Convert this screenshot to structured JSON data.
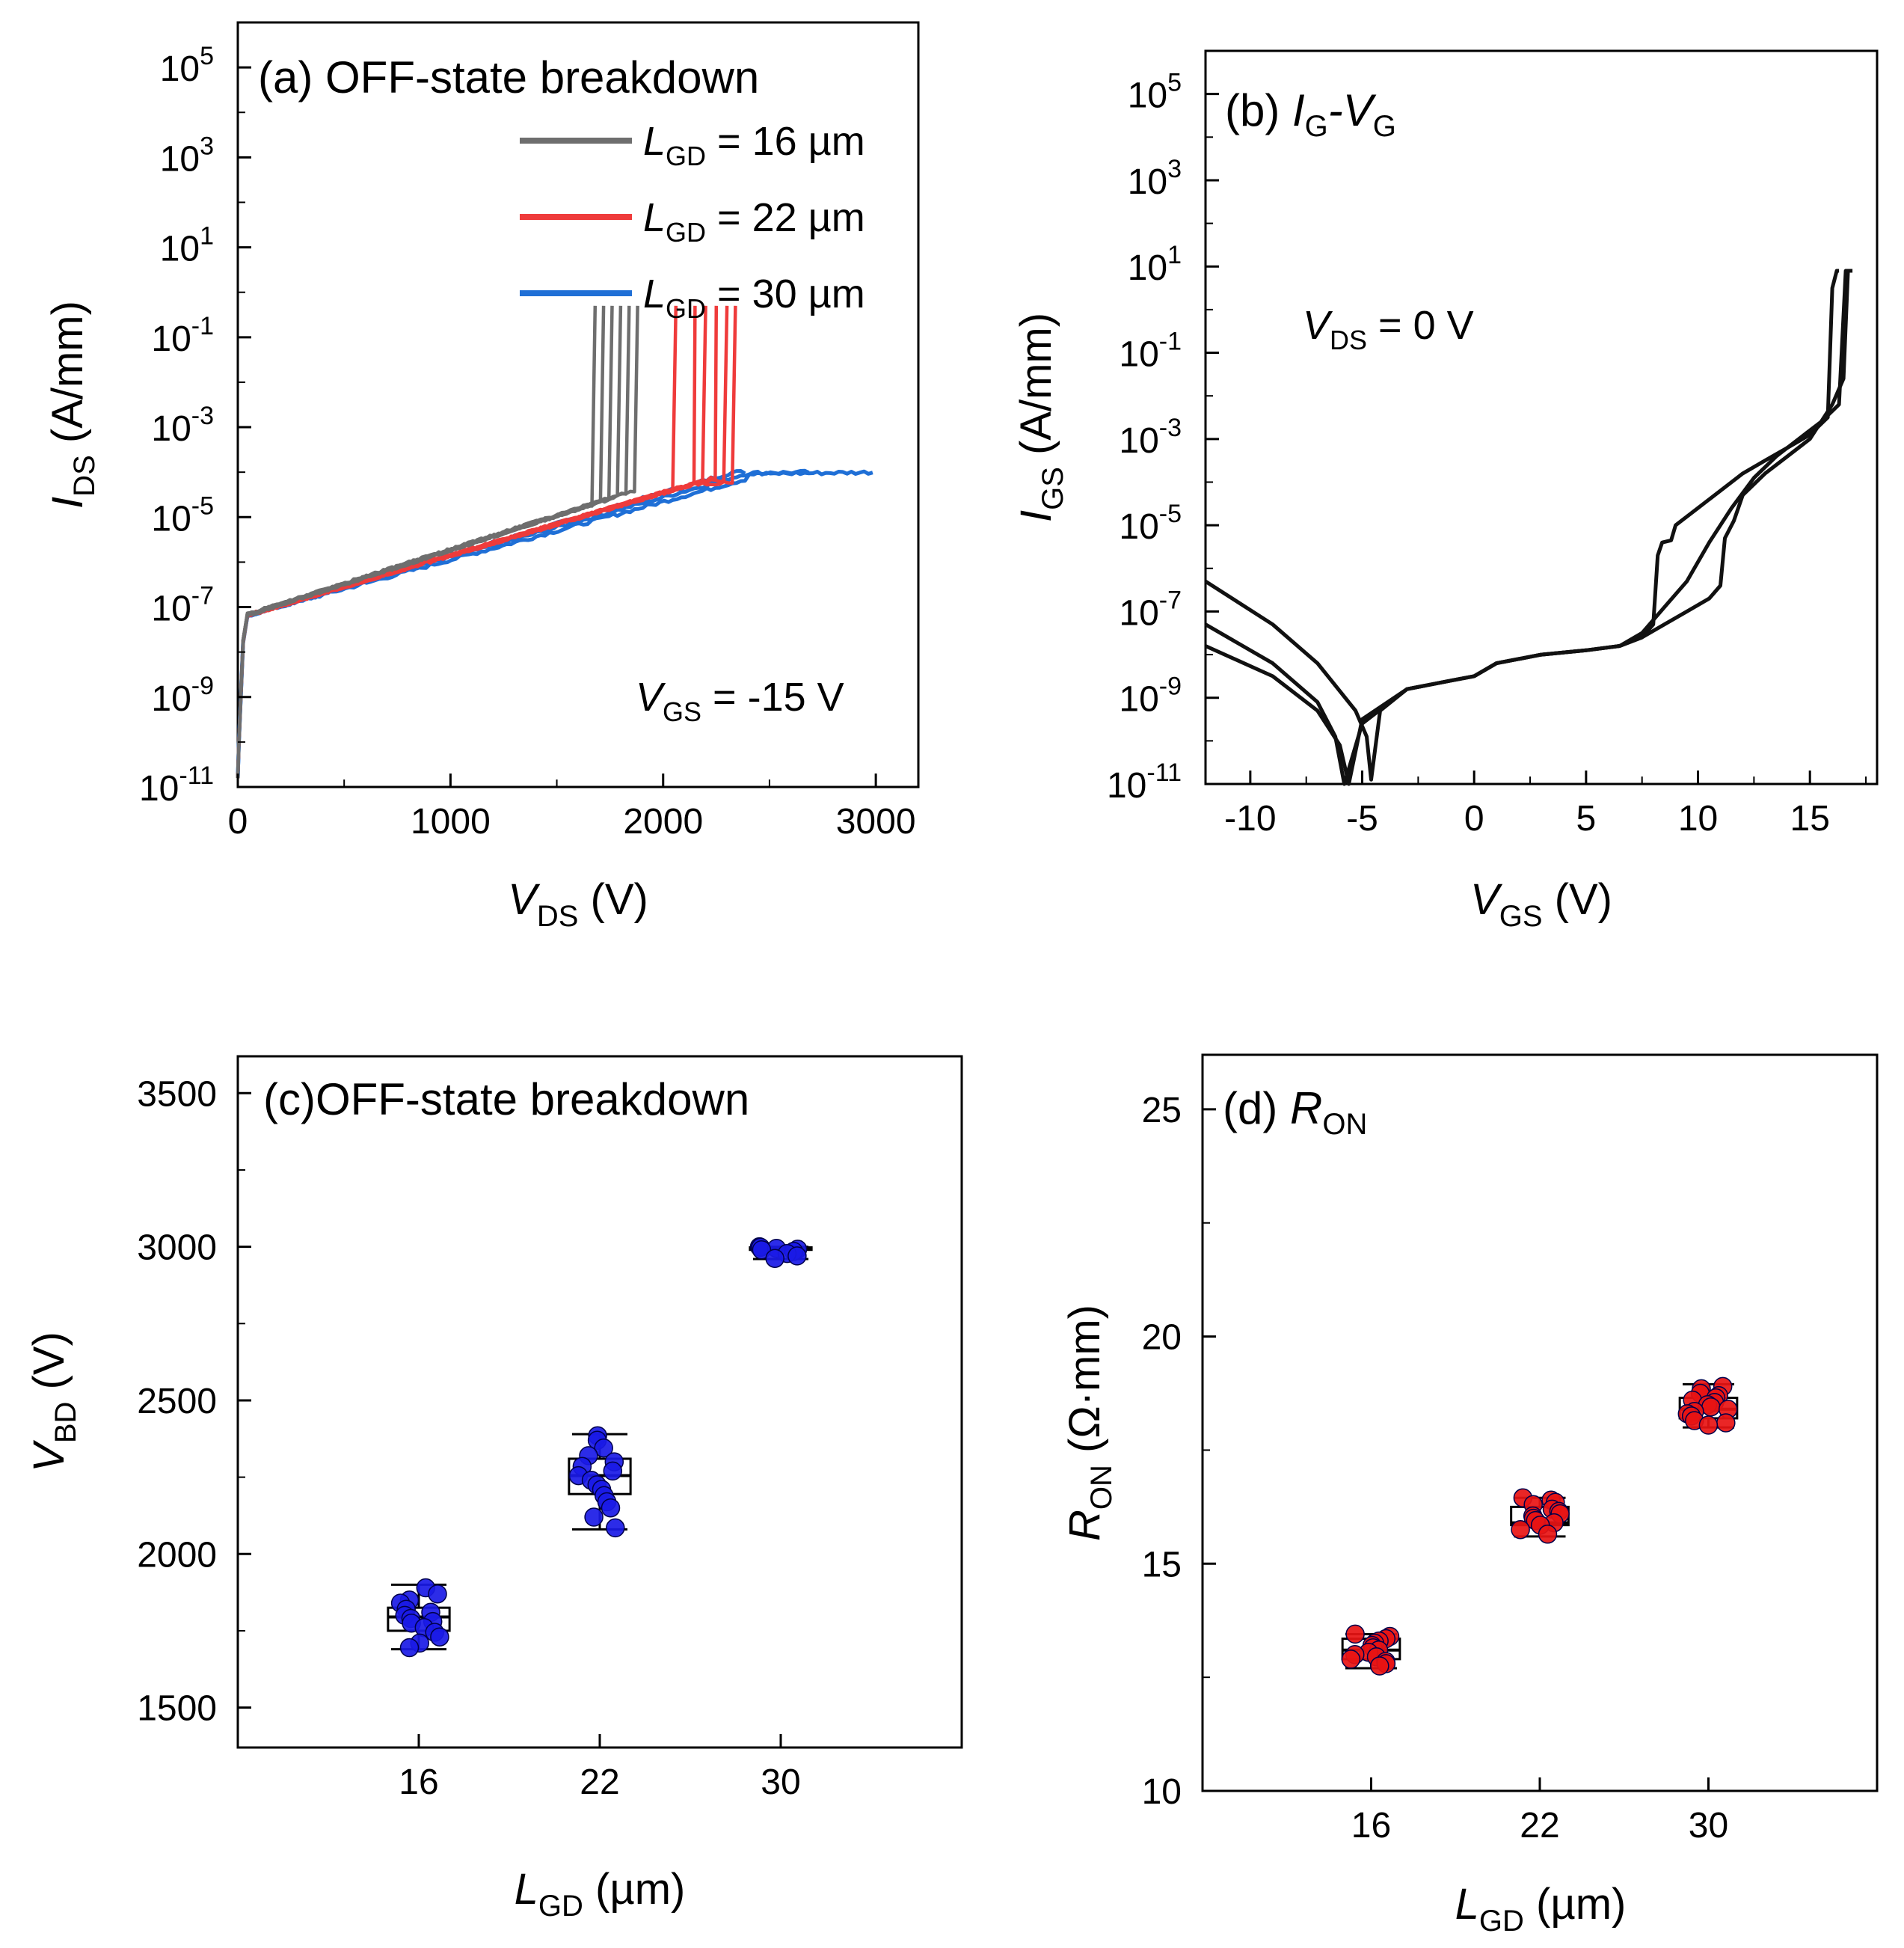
{
  "chart_data": [
    {
      "panel": "a",
      "type": "line",
      "label": "(a) OFF-state breakdown",
      "xlabel_main": "V",
      "xlabel_sub": "DS",
      "xlabel_rest": " (V)",
      "ylabel_main": "I",
      "ylabel_sub": "DS",
      "ylabel_rest": " (A/mm)",
      "xlim": [
        0,
        3200
      ],
      "ylim_log10": [
        -11,
        6
      ],
      "xticks": [
        0,
        1000,
        2000,
        3000
      ],
      "xtick_labels": [
        "0",
        "1000",
        "2000",
        "3000"
      ],
      "yticks_exp": [
        -11,
        -9,
        -7,
        -5,
        -3,
        -1,
        1,
        3,
        5
      ],
      "ytick_labels": [
        "-11",
        "-9",
        "-7",
        "-5",
        "-3",
        "-1",
        "1",
        "3",
        "5"
      ],
      "annotation": {
        "main": "V",
        "sub": "GS",
        "rest": " = -15 V"
      },
      "legend": [
        {
          "main": "L",
          "sub": "GD",
          "rest": " = 16 µm",
          "color": "#6e6e6e"
        },
        {
          "main": "L",
          "sub": "GD",
          "rest": " = 22 µm",
          "color": "#ef3b3b"
        },
        {
          "main": "L",
          "sub": "GD",
          "rest": " = 30 µm",
          "color": "#1f6fd6"
        }
      ],
      "series": [
        {
          "name": "L_GD = 16 µm",
          "color": "#6e6e6e",
          "breakdown_V": [
            1680,
            1720,
            1760,
            1800,
            1840,
            1880
          ],
          "compliance_A_per_mm": 0.5,
          "leak_at_breakdown_A_per_mm": 0.0001
        },
        {
          "name": "L_GD = 22 µm",
          "color": "#ef3b3b",
          "breakdown_V": [
            2060,
            2150,
            2200,
            2250,
            2300,
            2340
          ],
          "compliance_A_per_mm": 0.5,
          "leak_at_breakdown_A_per_mm": 0.0001
        },
        {
          "name": "L_GD = 30 µm",
          "color": "#1f6fd6",
          "end_V": [
            2400,
            2700,
            3000
          ],
          "leak_at_end_A_per_mm": 0.0001
        }
      ]
    },
    {
      "panel": "b",
      "type": "line",
      "label_prefix": "(b) ",
      "label_parts": [
        {
          "main": "I",
          "sub": "G"
        },
        {
          "main": "-V",
          "sub": "G"
        }
      ],
      "xlabel_main": "V",
      "xlabel_sub": "GS",
      "xlabel_rest": " (V)",
      "ylabel_main": "I",
      "ylabel_sub": "GS",
      "ylabel_rest": " (A/mm)",
      "xlim": [
        -12,
        18
      ],
      "ylim_log10": [
        -11,
        6
      ],
      "xticks": [
        -10,
        -5,
        0,
        5,
        10,
        15
      ],
      "xtick_labels": [
        "-10",
        "-5",
        "0",
        "5",
        "10",
        "15"
      ],
      "yticks_exp": [
        -11,
        -9,
        -7,
        -5,
        -3,
        -1,
        1,
        3,
        5
      ],
      "ytick_labels": [
        "-11",
        "-9",
        "-7",
        "-5",
        "-3",
        "-1",
        "1",
        "3",
        "5"
      ],
      "annotation": {
        "main": "V",
        "sub": "DS",
        "rest": " = 0 V"
      },
      "series_curves": [
        {
          "min_at_V": -5.8,
          "x": [
            -12,
            -9,
            -7,
            -6.2,
            -5.8,
            -5,
            -3,
            -1,
            0,
            1,
            3,
            5,
            6.5,
            7.5,
            8,
            8.2,
            8.4,
            8.8,
            9,
            10,
            11,
            12,
            13,
            14,
            15,
            15.8,
            16.0,
            16.2,
            16.3
          ],
          "log10y": [
            -7.3,
            -8.2,
            -9.1,
            -9.9,
            -11.0,
            -9.6,
            -8.8,
            -8.6,
            -8.5,
            -8.2,
            -8.0,
            -7.9,
            -7.8,
            -7.6,
            -7.3,
            -5.7,
            -5.4,
            -5.35,
            -5.0,
            -4.6,
            -4.2,
            -3.8,
            -3.5,
            -3.2,
            -2.9,
            -2.5,
            0.5,
            0.9,
            0.9
          ]
        },
        {
          "min_at_V": -5.6,
          "x": [
            -12,
            -9,
            -7,
            -6.0,
            -5.6,
            -5,
            -3,
            -1,
            0,
            1,
            3,
            5,
            6.5,
            7.5,
            8.5,
            9.5,
            10.5,
            11,
            11.2,
            11.6,
            12,
            13,
            14,
            15,
            16,
            16.5,
            16.7,
            16.9
          ],
          "log10y": [
            -7.8,
            -8.5,
            -9.3,
            -10.1,
            -11.0,
            -9.5,
            -8.8,
            -8.6,
            -8.5,
            -8.2,
            -8.0,
            -7.9,
            -7.8,
            -7.6,
            -7.3,
            -7.0,
            -6.7,
            -6.4,
            -5.3,
            -4.9,
            -4.3,
            -3.8,
            -3.4,
            -3.0,
            -2.2,
            -1.6,
            0.9,
            0.9
          ]
        },
        {
          "min_at_V": -4.6,
          "x": [
            -12,
            -9,
            -7,
            -5.3,
            -4.8,
            -4.6,
            -4.2,
            -3,
            -1,
            0,
            1,
            3,
            5,
            6.5,
            7.5,
            8.5,
            9.5,
            10.5,
            11.5,
            12.5,
            13.5,
            14.5,
            15.5,
            16.3,
            16.6,
            16.8
          ],
          "log10y": [
            -6.3,
            -7.3,
            -8.2,
            -9.3,
            -9.9,
            -10.9,
            -9.3,
            -8.8,
            -8.6,
            -8.5,
            -8.2,
            -8.0,
            -7.9,
            -7.8,
            -7.5,
            -6.9,
            -6.3,
            -5.4,
            -4.6,
            -3.9,
            -3.4,
            -3.0,
            -2.6,
            -2.2,
            0.9,
            0.9
          ]
        }
      ]
    },
    {
      "panel": "c",
      "type": "box",
      "label": "(c)OFF-state breakdown",
      "xlabel_main": "L",
      "xlabel_sub": "GD",
      "xlabel_rest": " (µm)",
      "ylabel_main": "V",
      "ylabel_sub": "BD",
      "ylabel_rest": " (V)",
      "categories": [
        "16",
        "22",
        "30"
      ],
      "ylim": [
        1370,
        3620
      ],
      "yticks": [
        1500,
        2000,
        2500,
        3000,
        3500
      ],
      "ytick_labels": [
        "1500",
        "2000",
        "2500",
        "3000",
        "3500"
      ],
      "point_color": "#1a1ae6",
      "boxes": [
        {
          "category": "16",
          "min": 1690,
          "q1": 1750,
          "median": 1795,
          "q3": 1825,
          "max": 1900,
          "points": [
            1890,
            1870,
            1850,
            1840,
            1820,
            1810,
            1800,
            1790,
            1780,
            1775,
            1760,
            1745,
            1730,
            1710,
            1695
          ]
        },
        {
          "category": "22",
          "min": 2080,
          "q1": 2195,
          "median": 2255,
          "q3": 2310,
          "max": 2390,
          "points": [
            2385,
            2370,
            2345,
            2320,
            2300,
            2285,
            2270,
            2255,
            2240,
            2225,
            2210,
            2190,
            2170,
            2150,
            2120,
            2085
          ]
        },
        {
          "category": "30",
          "min": 2960,
          "q1": 2990,
          "median": 2995,
          "q3": 2998,
          "max": 3000,
          "points": [
            3000,
            2998,
            2995,
            2992,
            2990,
            2985,
            2978,
            2970,
            2962
          ]
        }
      ]
    },
    {
      "panel": "d",
      "type": "box",
      "label_prefix": "(d) ",
      "label_main": "R",
      "label_sub": "ON",
      "xlabel_main": "L",
      "xlabel_sub": "GD",
      "xlabel_rest": " (µm)",
      "ylabel_main": "R",
      "ylabel_sub": "ON",
      "ylabel_rest": " (Ω·mm)",
      "categories": [
        "16",
        "22",
        "30"
      ],
      "ylim": [
        10,
        26.2
      ],
      "yticks": [
        10,
        15,
        20,
        25
      ],
      "ytick_labels": [
        "10",
        "15",
        "20",
        "25"
      ],
      "point_color": "#e81414",
      "boxes": [
        {
          "category": "16",
          "min": 12.7,
          "q1": 12.9,
          "median": 13.1,
          "q3": 13.35,
          "max": 13.45,
          "points": [
            13.45,
            13.4,
            13.35,
            13.3,
            13.25,
            13.2,
            13.15,
            13.1,
            13.05,
            13.0,
            12.95,
            12.9,
            12.85,
            12.8,
            12.75
          ]
        },
        {
          "category": "22",
          "min": 15.6,
          "q1": 15.85,
          "median": 15.9,
          "q3": 16.25,
          "max": 16.45,
          "points": [
            16.45,
            16.4,
            16.35,
            16.3,
            16.2,
            16.15,
            16.1,
            16.05,
            16.0,
            15.95,
            15.9,
            15.85,
            15.75,
            15.65
          ]
        },
        {
          "category": "30",
          "min": 18.0,
          "q1": 18.2,
          "median": 18.4,
          "q3": 18.65,
          "max": 18.95,
          "points": [
            18.9,
            18.85,
            18.75,
            18.7,
            18.65,
            18.6,
            18.55,
            18.5,
            18.45,
            18.4,
            18.35,
            18.3,
            18.25,
            18.15,
            18.1,
            18.05
          ]
        }
      ]
    }
  ]
}
